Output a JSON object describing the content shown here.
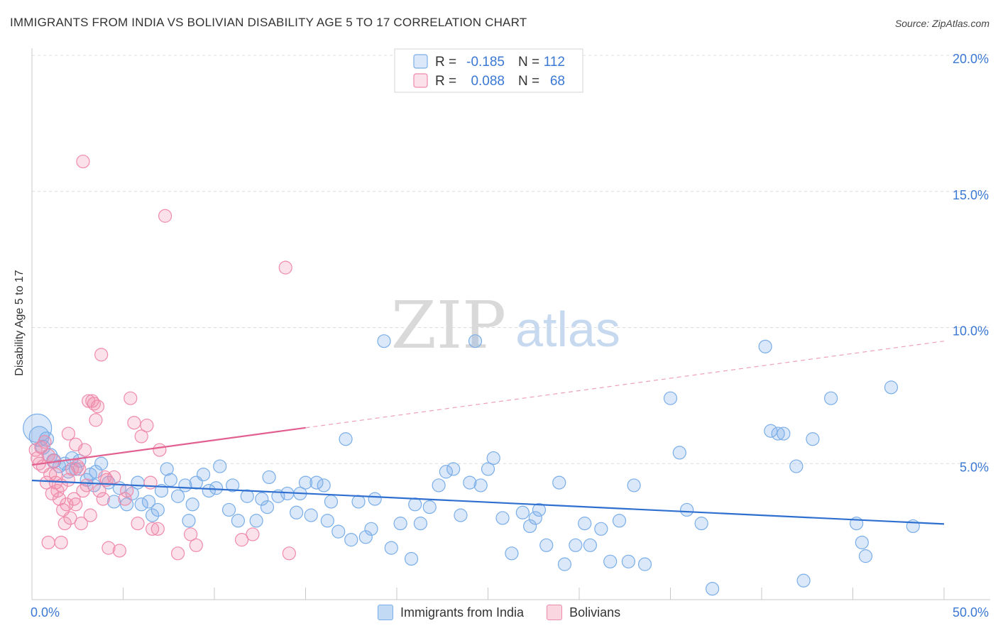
{
  "title": "IMMIGRANTS FROM INDIA VS BOLIVIAN DISABILITY AGE 5 TO 17 CORRELATION CHART",
  "source": "Source: ZipAtlas.com",
  "watermark": {
    "zip": "ZIP",
    "atlas": "atlas"
  },
  "chart_data": {
    "type": "scatter",
    "ylabel": "Disability Age 5 to 17",
    "xlim": [
      0,
      50
    ],
    "ylim": [
      0,
      20
    ],
    "x_tick_labels": {
      "min": "0.0%",
      "max": "50.0%"
    },
    "y_ticks": [
      {
        "value": 5,
        "label": "5.0%"
      },
      {
        "value": 10,
        "label": "10.0%"
      },
      {
        "value": 15,
        "label": "15.0%"
      },
      {
        "value": 20,
        "label": "20.0%"
      }
    ],
    "legend_box": [
      {
        "r_label": "R =",
        "r_value": "-0.185",
        "n_label": "N =",
        "n_value": "112"
      },
      {
        "r_label": "R =",
        "r_value": "0.088",
        "n_label": "N =",
        "n_value": "68"
      }
    ],
    "series": [
      {
        "name": "Immigrants from India",
        "color": "#7aaee8",
        "fill": "rgba(122,174,232,0.28)",
        "trend_color": "#2f6fd0",
        "trend": {
          "x0": 0,
          "y0": 4.38,
          "x1": 50,
          "y1": 2.78,
          "solid_until": 50
        },
        "points": [
          [
            0.3,
            6.3,
            20
          ],
          [
            0.4,
            6.0,
            14
          ],
          [
            0.6,
            5.6,
            10
          ],
          [
            0.8,
            5.9,
            10
          ],
          [
            1.0,
            5.3,
            10
          ],
          [
            1.2,
            5.1,
            10
          ],
          [
            1.5,
            4.9,
            9
          ],
          [
            1.8,
            5.0,
            9
          ],
          [
            2.0,
            4.7,
            9
          ],
          [
            2.4,
            4.8,
            9
          ],
          [
            2.6,
            5.1,
            9
          ],
          [
            3.0,
            4.4,
            9
          ],
          [
            3.4,
            4.2,
            9
          ],
          [
            3.5,
            4.7,
            9
          ],
          [
            3.8,
            5.0,
            9
          ],
          [
            4.2,
            4.3,
            9
          ],
          [
            4.5,
            3.6,
            9
          ],
          [
            4.8,
            4.1,
            9
          ],
          [
            5.2,
            3.5,
            9
          ],
          [
            5.5,
            3.9,
            9
          ],
          [
            6.0,
            3.5,
            9
          ],
          [
            6.4,
            3.6,
            9
          ],
          [
            6.9,
            3.3,
            9
          ],
          [
            7.1,
            4.0,
            9
          ],
          [
            7.4,
            4.8,
            9
          ],
          [
            7.6,
            4.4,
            9
          ],
          [
            8.0,
            3.8,
            9
          ],
          [
            8.4,
            4.2,
            9
          ],
          [
            8.8,
            3.5,
            9
          ],
          [
            9.0,
            4.3,
            9
          ],
          [
            9.4,
            4.6,
            9
          ],
          [
            9.7,
            4.0,
            9
          ],
          [
            10.1,
            4.1,
            9
          ],
          [
            10.3,
            4.9,
            9
          ],
          [
            10.8,
            3.3,
            9
          ],
          [
            11.0,
            4.2,
            9
          ],
          [
            11.3,
            2.9,
            9
          ],
          [
            11.8,
            3.8,
            9
          ],
          [
            12.3,
            2.9,
            9
          ],
          [
            12.6,
            3.7,
            9
          ],
          [
            13.0,
            4.5,
            9
          ],
          [
            13.5,
            3.8,
            9
          ],
          [
            14.0,
            3.9,
            9
          ],
          [
            14.5,
            3.2,
            9
          ],
          [
            14.7,
            3.9,
            9
          ],
          [
            15.0,
            4.3,
            9
          ],
          [
            15.3,
            3.1,
            9
          ],
          [
            15.6,
            4.3,
            9
          ],
          [
            16.0,
            4.2,
            9
          ],
          [
            16.4,
            3.6,
            9
          ],
          [
            16.8,
            2.5,
            9
          ],
          [
            17.2,
            5.9,
            9
          ],
          [
            17.5,
            2.2,
            9
          ],
          [
            17.9,
            3.6,
            9
          ],
          [
            18.3,
            2.3,
            9
          ],
          [
            18.8,
            3.7,
            9
          ],
          [
            19.3,
            9.5,
            9
          ],
          [
            19.7,
            1.9,
            9
          ],
          [
            20.2,
            2.8,
            9
          ],
          [
            20.8,
            1.5,
            9
          ],
          [
            21.3,
            2.8,
            9
          ],
          [
            21.8,
            3.4,
            9
          ],
          [
            22.3,
            4.2,
            9
          ],
          [
            22.7,
            4.7,
            9
          ],
          [
            23.1,
            4.8,
            9
          ],
          [
            23.5,
            3.1,
            9
          ],
          [
            24.0,
            4.3,
            9
          ],
          [
            24.3,
            9.5,
            9
          ],
          [
            24.6,
            4.2,
            9
          ],
          [
            25.0,
            4.8,
            9
          ],
          [
            25.3,
            5.2,
            9
          ],
          [
            25.8,
            3.0,
            9
          ],
          [
            26.3,
            1.7,
            9
          ],
          [
            26.9,
            3.2,
            9
          ],
          [
            27.3,
            2.7,
            9
          ],
          [
            27.6,
            3.0,
            9
          ],
          [
            27.8,
            3.3,
            9
          ],
          [
            28.2,
            2.0,
            9
          ],
          [
            28.9,
            4.3,
            9
          ],
          [
            29.2,
            1.3,
            9
          ],
          [
            29.8,
            2.0,
            9
          ],
          [
            30.3,
            2.8,
            9
          ],
          [
            30.6,
            2.0,
            9
          ],
          [
            31.2,
            2.6,
            9
          ],
          [
            31.7,
            1.4,
            9
          ],
          [
            32.2,
            2.9,
            9
          ],
          [
            32.7,
            1.4,
            9
          ],
          [
            33.6,
            1.3,
            9
          ],
          [
            35.0,
            7.4,
            9
          ],
          [
            35.5,
            5.4,
            9
          ],
          [
            35.9,
            3.3,
            9
          ],
          [
            36.7,
            2.8,
            9
          ],
          [
            37.3,
            0.4,
            9
          ],
          [
            40.2,
            9.3,
            9
          ],
          [
            40.9,
            6.1,
            9
          ],
          [
            41.2,
            6.1,
            9
          ],
          [
            41.9,
            4.9,
            9
          ],
          [
            42.3,
            0.7,
            9
          ],
          [
            42.8,
            5.9,
            9
          ],
          [
            43.8,
            7.4,
            9
          ],
          [
            45.2,
            2.8,
            9
          ],
          [
            45.5,
            2.1,
            9
          ],
          [
            45.7,
            1.6,
            9
          ],
          [
            47.1,
            7.8,
            9
          ],
          [
            48.3,
            2.7,
            9
          ],
          [
            40.5,
            6.2,
            9
          ],
          [
            8.6,
            2.9,
            9
          ],
          [
            6.6,
            3.1,
            9
          ],
          [
            12.9,
            3.4,
            9
          ],
          [
            18.6,
            2.6,
            9
          ],
          [
            21.0,
            3.5,
            9
          ],
          [
            33.0,
            4.2,
            9
          ],
          [
            3.2,
            4.6,
            9
          ],
          [
            2.2,
            5.2,
            9
          ],
          [
            5.8,
            4.3,
            9
          ],
          [
            16.2,
            2.9,
            9
          ]
        ]
      },
      {
        "name": "Bolivians",
        "color": "#f08aaa",
        "fill": "rgba(240,138,170,0.25)",
        "trend_color": "#e26090",
        "trend": {
          "x0": 0,
          "y0": 4.95,
          "x1": 50,
          "y1": 9.5,
          "solid_until": 15
        },
        "points": [
          [
            0.2,
            5.5,
            9
          ],
          [
            0.3,
            5.2,
            9
          ],
          [
            0.4,
            5.0,
            9
          ],
          [
            0.5,
            5.6,
            9
          ],
          [
            0.6,
            4.9,
            9
          ],
          [
            0.7,
            5.8,
            9
          ],
          [
            0.8,
            4.3,
            9
          ],
          [
            0.9,
            5.3,
            9
          ],
          [
            1.0,
            4.6,
            9
          ],
          [
            1.1,
            3.9,
            9
          ],
          [
            1.2,
            5.1,
            9
          ],
          [
            1.3,
            4.6,
            9
          ],
          [
            1.4,
            4.0,
            9
          ],
          [
            1.5,
            3.7,
            9
          ],
          [
            1.6,
            4.2,
            9
          ],
          [
            1.7,
            3.3,
            9
          ],
          [
            1.8,
            2.8,
            9
          ],
          [
            1.9,
            3.5,
            9
          ],
          [
            2.0,
            4.4,
            9
          ],
          [
            2.1,
            3.0,
            9
          ],
          [
            2.2,
            4.8,
            9
          ],
          [
            2.3,
            3.7,
            9
          ],
          [
            2.4,
            3.5,
            9
          ],
          [
            2.5,
            4.9,
            9
          ],
          [
            2.6,
            4.8,
            9
          ],
          [
            2.7,
            2.8,
            9
          ],
          [
            2.8,
            4.0,
            9
          ],
          [
            2.9,
            5.5,
            9
          ],
          [
            3.0,
            4.2,
            9
          ],
          [
            3.1,
            7.3,
            9
          ],
          [
            3.2,
            3.1,
            9
          ],
          [
            3.3,
            7.3,
            9
          ],
          [
            3.4,
            7.2,
            9
          ],
          [
            3.5,
            6.6,
            9
          ],
          [
            3.6,
            7.1,
            9
          ],
          [
            3.7,
            4.0,
            9
          ],
          [
            3.8,
            9.0,
            9
          ],
          [
            3.9,
            3.7,
            9
          ],
          [
            4.0,
            4.5,
            9
          ],
          [
            4.1,
            4.4,
            9
          ],
          [
            4.2,
            1.9,
            9
          ],
          [
            4.5,
            4.5,
            9
          ],
          [
            4.8,
            1.8,
            9
          ],
          [
            5.2,
            4.0,
            9
          ],
          [
            5.4,
            7.4,
            9
          ],
          [
            5.6,
            6.5,
            9
          ],
          [
            5.8,
            2.8,
            9
          ],
          [
            6.0,
            6.0,
            9
          ],
          [
            6.3,
            6.4,
            9
          ],
          [
            6.5,
            4.3,
            9
          ],
          [
            6.9,
            2.6,
            9
          ],
          [
            7.0,
            5.5,
            9
          ],
          [
            7.3,
            14.1,
            9
          ],
          [
            8.0,
            1.7,
            9
          ],
          [
            8.7,
            2.4,
            9
          ],
          [
            9.0,
            2.0,
            9
          ],
          [
            11.5,
            2.2,
            9
          ],
          [
            12.1,
            2.4,
            9
          ],
          [
            13.9,
            12.2,
            9
          ],
          [
            14.1,
            1.7,
            9
          ],
          [
            2.8,
            16.1,
            9
          ],
          [
            1.6,
            2.1,
            9
          ],
          [
            0.9,
            2.1,
            9
          ],
          [
            2.0,
            6.1,
            9
          ],
          [
            2.4,
            5.7,
            9
          ],
          [
            1.3,
            4.3,
            9
          ],
          [
            5.1,
            3.7,
            9
          ],
          [
            6.6,
            2.6,
            9
          ]
        ]
      }
    ]
  }
}
